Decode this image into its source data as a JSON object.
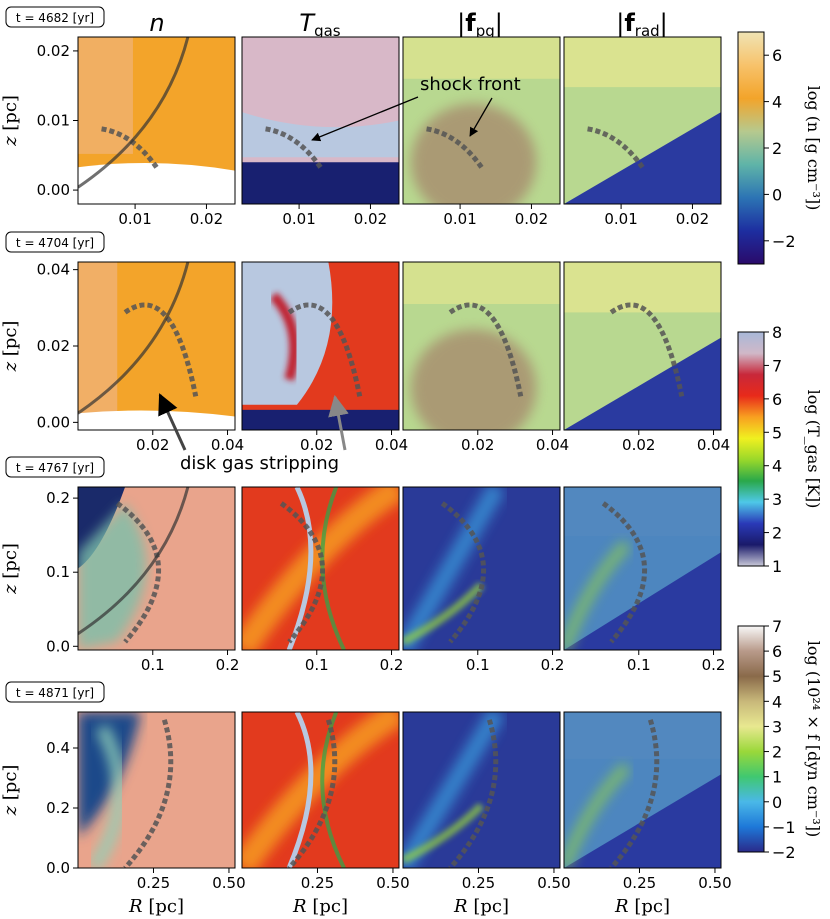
{
  "chart_data": {
    "type": "heatmap",
    "columns": [
      {
        "title": "n"
      },
      {
        "title": "T",
        "subscript": "gas"
      },
      {
        "title": "|f",
        "subscript": "pg",
        "suffix": "|"
      },
      {
        "title": "|f",
        "subscript": "rad",
        "suffix": "|"
      }
    ],
    "rows": [
      {
        "time_label": "t = 4682 [yr]",
        "yticks": [
          "0.00",
          "0.01",
          "0.02"
        ],
        "xticks": [
          "0.01",
          "0.02"
        ],
        "ylim": [
          -0.002,
          0.022
        ],
        "xlim": [
          0.002,
          0.024
        ],
        "show_xlabel": false
      },
      {
        "time_label": "t = 4704 [yr]",
        "yticks": [
          "0.00",
          "0.02",
          "0.04"
        ],
        "xticks": [
          "0.02",
          "0.04"
        ],
        "ylim": [
          -0.002,
          0.042
        ],
        "xlim": [
          0.0,
          0.042
        ],
        "show_xlabel": false
      },
      {
        "time_label": "t = 4767 [yr]",
        "yticks": [
          "0.0",
          "0.1",
          "0.2"
        ],
        "xticks": [
          "0.1",
          "0.2"
        ],
        "ylim": [
          -0.005,
          0.215
        ],
        "xlim": [
          0.0,
          0.21
        ],
        "show_xlabel": false
      },
      {
        "time_label": "t = 4871 [yr]",
        "yticks": [
          "0.0",
          "0.2",
          "0.4"
        ],
        "xticks": [
          "0.25",
          "0.50"
        ],
        "ylim": [
          0.0,
          0.52
        ],
        "xlim": [
          0.0,
          0.52
        ],
        "show_xlabel": true
      }
    ],
    "ylabel": "z [pc]",
    "xlabel": "R [pc]",
    "annotations": {
      "shock_front": "shock front",
      "disk_stripping": "disk gas stripping"
    },
    "colorbars": [
      {
        "label": "log (n [g cm⁻³])",
        "ticks": [
          "6",
          "4",
          "2",
          "0",
          "−2"
        ],
        "range": [
          -3,
          7
        ],
        "colors": [
          "#2a0a6a",
          "#1d2ea0",
          "#2c74b4",
          "#5fb4a8",
          "#b6c98e",
          "#f3a42a",
          "#f7c26b",
          "#f0e4b4"
        ]
      },
      {
        "label": "log (T_gas [K])",
        "ticks": [
          "8",
          "7",
          "6",
          "5",
          "4",
          "3",
          "2",
          "1"
        ],
        "range": [
          1,
          8
        ],
        "colors": [
          "#c8c8d8",
          "#1a1a6a",
          "#2a3ab8",
          "#4ec8e8",
          "#2aa84a",
          "#9ad82a",
          "#f0f020",
          "#f8a020",
          "#e82a1a",
          "#c8283a",
          "#d0b8c8",
          "#a8b8d8"
        ]
      },
      {
        "label": "log (10²⁴ × f [dyn cm⁻³])",
        "ticks": [
          "7",
          "6",
          "5",
          "4",
          "3",
          "2",
          "1",
          "0",
          "−1",
          "−2"
        ],
        "range": [
          -2,
          7
        ],
        "colors": [
          "#2a2a8a",
          "#1e78d8",
          "#4ab8e8",
          "#40c870",
          "#9ad83a",
          "#e8e890",
          "#c8b87a",
          "#8a6a4a",
          "#b89a8a",
          "#f8f8f8"
        ]
      }
    ]
  }
}
